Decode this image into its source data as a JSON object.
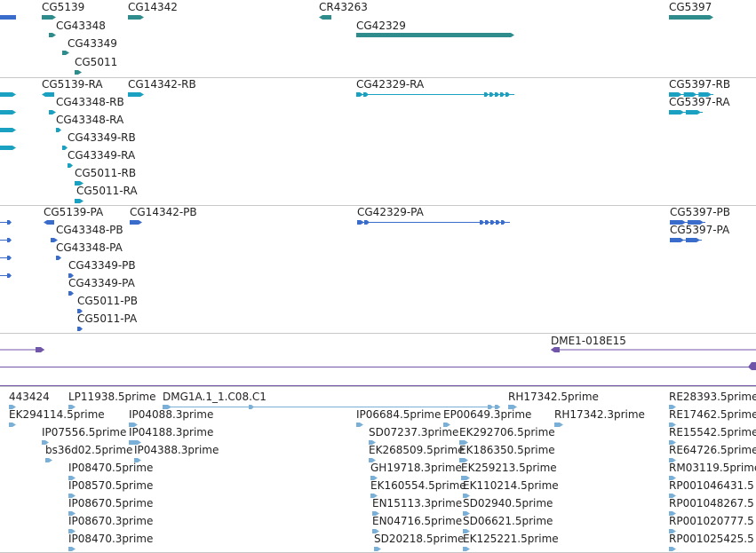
{
  "colors": {
    "gene": "#2e8c8c",
    "mrna": "#1aa0c0",
    "protein": "#3a6ccc",
    "clone": "#7055a8",
    "est": "#7ab0d8",
    "divider": "#c8c8c8",
    "text": "#222222"
  },
  "tracks": [
    {
      "name": "gene-track",
      "color_key": "gene",
      "features": [
        {
          "label": "CG5139"
        },
        {
          "label": "CG14342"
        },
        {
          "label": "CR43263"
        },
        {
          "label": "CG5397"
        },
        {
          "label": "CG43348"
        },
        {
          "label": "CG42329"
        },
        {
          "label": "CG43349"
        },
        {
          "label": "CG5011"
        }
      ]
    },
    {
      "name": "transcript-track",
      "color_key": "mrna",
      "features": [
        {
          "label": "CG5139-RA"
        },
        {
          "label": "CG14342-RB"
        },
        {
          "label": "CG42329-RA"
        },
        {
          "label": "CG5397-RB"
        },
        {
          "label": "CG43348-RB"
        },
        {
          "label": "CG5397-RA"
        },
        {
          "label": "CG43348-RA"
        },
        {
          "label": "CG43349-RB"
        },
        {
          "label": "CG43349-RA"
        },
        {
          "label": "CG5011-RB"
        },
        {
          "label": "CG5011-RA"
        }
      ]
    },
    {
      "name": "protein-track",
      "color_key": "protein",
      "features": [
        {
          "label": "CG5139-PA"
        },
        {
          "label": "CG14342-PB"
        },
        {
          "label": "CG42329-PA"
        },
        {
          "label": "CG5397-PB"
        },
        {
          "label": "CG43348-PB"
        },
        {
          "label": "CG5397-PA"
        },
        {
          "label": "CG43348-PA"
        },
        {
          "label": "CG43349-PB"
        },
        {
          "label": "CG43349-PA"
        },
        {
          "label": "CG5011-PB"
        },
        {
          "label": "CG5011-PA"
        }
      ]
    },
    {
      "name": "clone-track",
      "color_key": "clone",
      "features": [
        {
          "label": "DME1-018E15"
        }
      ]
    },
    {
      "name": "est-track",
      "color_key": "est",
      "features": [
        {
          "label": "443424"
        },
        {
          "label": "LP11938.5prime"
        },
        {
          "label": "DMG1A.1_1.C08.C1"
        },
        {
          "label": "RH17342.5prime"
        },
        {
          "label": "RE28393.5prime"
        },
        {
          "label": "EK294114.5prime"
        },
        {
          "label": "IP04088.3prime"
        },
        {
          "label": "IP06684.5prime"
        },
        {
          "label": "EP00649.3prime"
        },
        {
          "label": "RH17342.3prime"
        },
        {
          "label": "RE17462.5prime"
        },
        {
          "label": "IP07556.5prime"
        },
        {
          "label": "IP04188.3prime"
        },
        {
          "label": "SD07237.3prime"
        },
        {
          "label": "EK292706.5prime"
        },
        {
          "label": "RE15542.5prime"
        },
        {
          "label": "bs36d02.5prime"
        },
        {
          "label": "IP04388.3prime"
        },
        {
          "label": "EK268509.5prime"
        },
        {
          "label": "EK186350.5prime"
        },
        {
          "label": "RE64726.5prime"
        },
        {
          "label": "IP08470.5prime"
        },
        {
          "label": "GH19718.3prime"
        },
        {
          "label": "EK259213.5prime"
        },
        {
          "label": "RM03119.5prime"
        },
        {
          "label": "IP08570.5prime"
        },
        {
          "label": "EK160554.5prime"
        },
        {
          "label": "EK110214.5prime"
        },
        {
          "label": "RP001046431.5"
        },
        {
          "label": "IP08670.5prime"
        },
        {
          "label": "EN15113.3prime"
        },
        {
          "label": "SD02940.5prime"
        },
        {
          "label": "RP001048267.5"
        },
        {
          "label": "IP08670.3prime"
        },
        {
          "label": "EN04716.5prime"
        },
        {
          "label": "SD06621.5prime"
        },
        {
          "label": "RP001020777.5"
        },
        {
          "label": "IP08470.3prime"
        },
        {
          "label": "SD20218.5prime"
        },
        {
          "label": "EK125221.5prime"
        },
        {
          "label": "RP001025425.5"
        }
      ]
    }
  ]
}
